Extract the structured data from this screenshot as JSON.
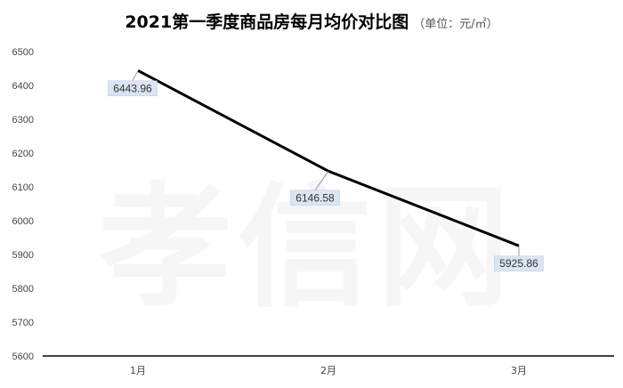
{
  "chart_data": {
    "type": "line",
    "title": "2021第一季度商品房每月均价对比图",
    "subtitle": "（单位：元/㎡）",
    "categories": [
      "1月",
      "2月",
      "3月"
    ],
    "series": [
      {
        "values": [
          6443.96,
          6146.58,
          5925.86
        ]
      }
    ],
    "data_labels": [
      "6443.96",
      "6146.58",
      "5925.86"
    ],
    "yticks": [
      5600,
      5700,
      5800,
      5900,
      6000,
      6100,
      6200,
      6300,
      6400,
      6500
    ],
    "ylim": [
      5600,
      6500
    ],
    "xlabel": "",
    "ylabel": "",
    "grid": false,
    "legend": "none",
    "line_color": "#000000",
    "label_bg_color": "#dbe5f1",
    "label_border_color": "#b8cce4"
  },
  "watermark": "孝信网"
}
